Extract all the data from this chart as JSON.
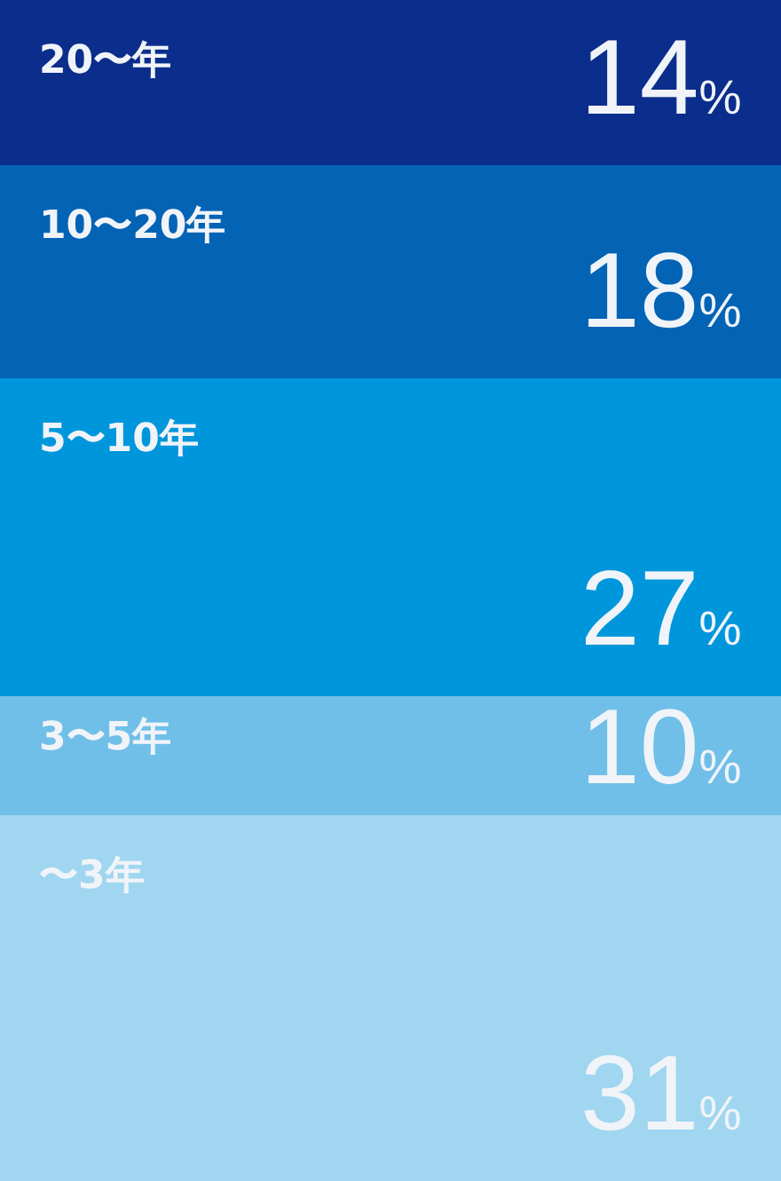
{
  "chart_data": {
    "type": "bar",
    "stacked": true,
    "categories": [
      null
    ],
    "ylim": [
      0,
      100
    ],
    "tick_labels": false,
    "series": [
      {
        "name": "〜3年",
        "color": "#a0d6f0",
        "values": [
          31
        ],
        "value_labels": [
          "31%"
        ]
      },
      {
        "name": "3〜5年",
        "color": "#70bfe8",
        "values": [
          10
        ],
        "value_labels": [
          "10%"
        ]
      },
      {
        "name": "5〜10年",
        "color": "#0096dc",
        "values": [
          27
        ],
        "value_labels": [
          "27%"
        ]
      },
      {
        "name": "10〜20年",
        "color": "#0363b5",
        "values": [
          18
        ],
        "value_labels": [
          "18%"
        ]
      },
      {
        "name": "20〜年",
        "color": "#0b2d8c",
        "values": [
          14
        ],
        "value_labels": [
          "14%"
        ]
      }
    ]
  }
}
